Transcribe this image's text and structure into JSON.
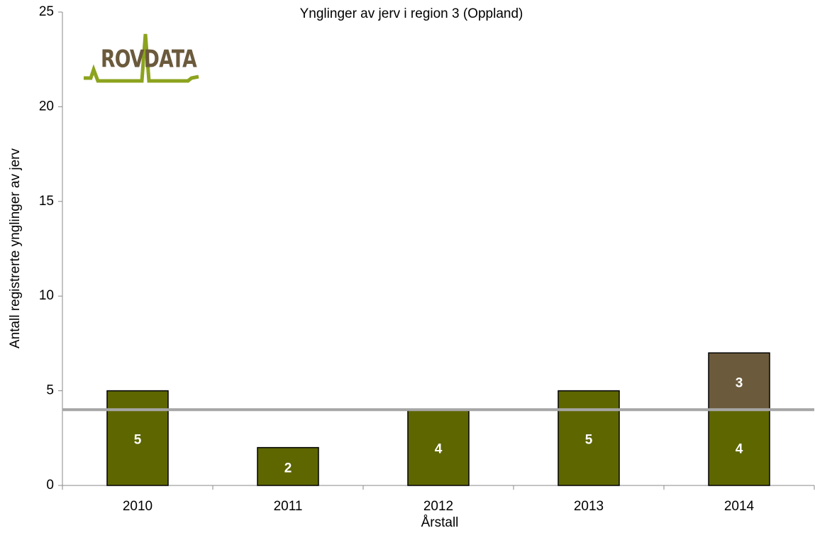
{
  "chart_data": {
    "type": "stacked_bar",
    "title": "Ynglinger av jerv i region 3 (Oppland)",
    "logo": "ROVDATA",
    "x_label": "Årstall",
    "y_label": "Antall registrerte ynglinger av jerv",
    "categories": [
      "2010",
      "2011",
      "2012",
      "2013",
      "2014"
    ],
    "series": [
      {
        "color": "#5e6600",
        "values": [
          5,
          2,
          4,
          5,
          4
        ]
      },
      {
        "color": "#6b5a3c",
        "values": [
          null,
          null,
          null,
          null,
          3
        ]
      }
    ],
    "reference_line": {
      "value": 4,
      "color": "#a6a6a6"
    },
    "ylim": [
      0,
      25
    ],
    "yticks": [
      0,
      5,
      10,
      15,
      20,
      25
    ]
  }
}
